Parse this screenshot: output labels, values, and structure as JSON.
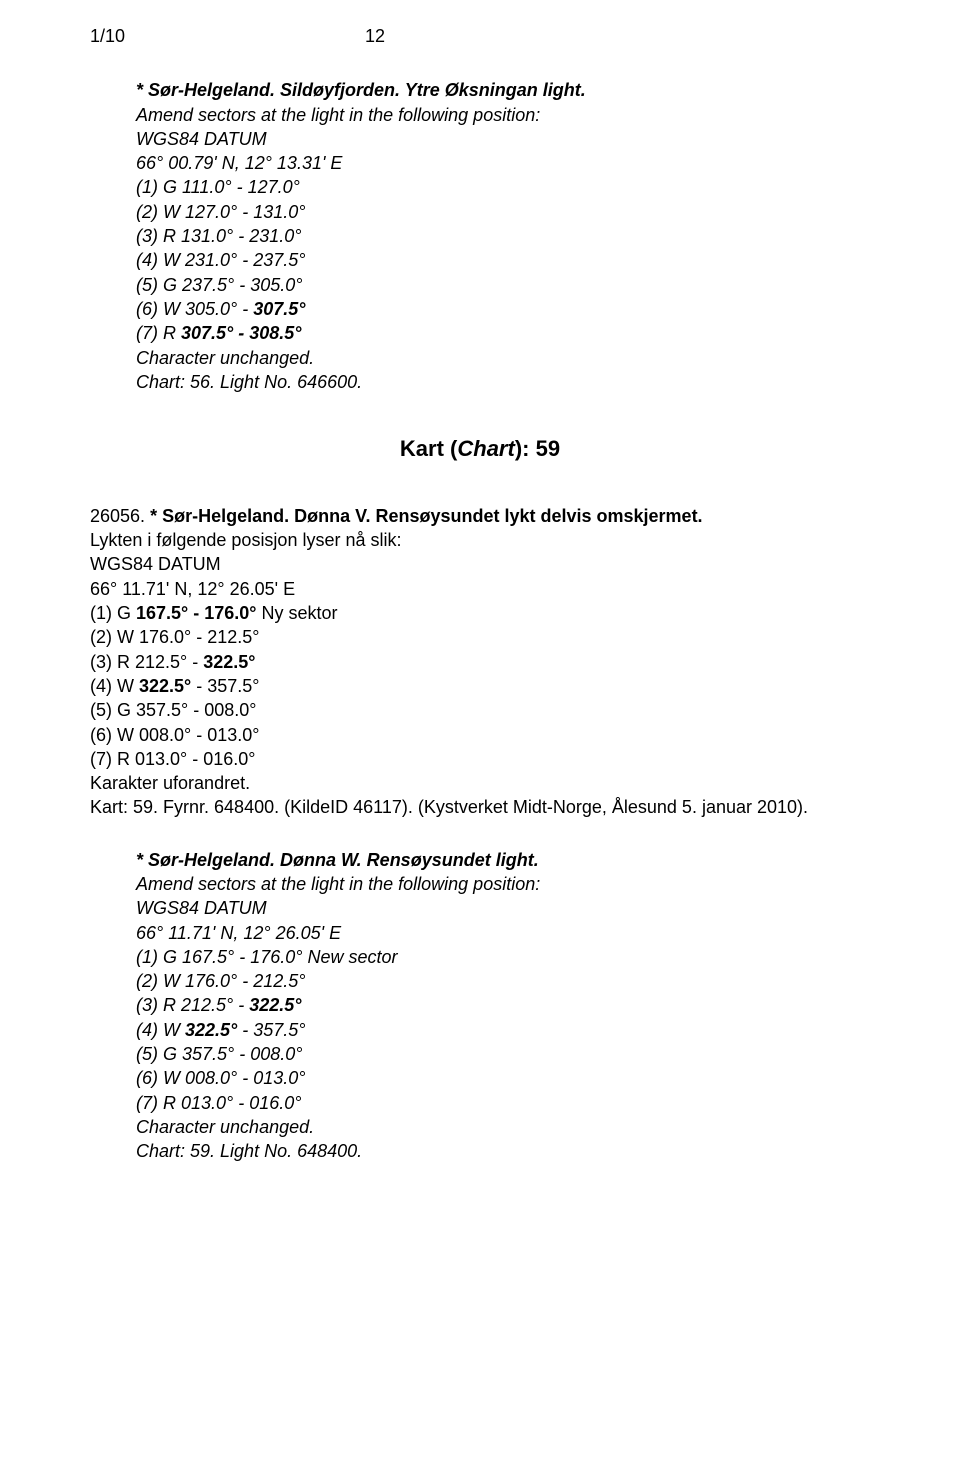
{
  "header": {
    "left": "1/10",
    "page": "12"
  },
  "s1": {
    "title_pre": "* Sør-Helgeland. Sildøyfjorden. Ytre Øksningan light.",
    "amend": "Amend sectors at the light in the following position:",
    "datum": "WGS84 DATUM",
    "coord": "66° 00.79' N, 12° 13.31' E",
    "l1": "(1) G  111.0° - 127.0°",
    "l2": "(2) W 127.0° - 131.0°",
    "l3": "(3) R  131.0° - 231.0°",
    "l4": "(4) W 231.0° - 237.5°",
    "l5": "(5) G  237.5° - 305.0°",
    "l6a": "(6) W 305.0° - ",
    "l6b": "307.5°",
    "l7a": "(7) R  ",
    "l7b": "307.5° - 308.5°",
    "unchanged": "Character unchanged.",
    "chartline": "Chart: 56. Light No. 646600."
  },
  "ch": {
    "pre": "Kart (",
    "mid": "Chart",
    "post": "): 59"
  },
  "s2": {
    "num": "26056. ",
    "title": "* Sør-Helgeland. Dønna V. Rensøysundet lykt delvis omskjermet.",
    "line2": "Lykten i følgende posisjon lyser nå slik:",
    "datum": "WGS84 DATUM",
    "coord": "66° 11.71' N, 12° 26.05' E",
    "l1a": "(1) G  ",
    "l1b": "167.5° - 176.0° ",
    "l1c": "Ny sektor",
    "l2": "(2) W 176.0° - 212.5°",
    "l3a": "(3) R  212.5° - ",
    "l3b": "322.5°",
    "l4a": "(4) W ",
    "l4b": "322.5° ",
    "l4c": "- 357.5°",
    "l5": "(5) G  357.5° - 008.0°",
    "l6": "(6) W 008.0° - 013.0°",
    "l7": "(7) R  013.0° - 016.0°",
    "kar": "Karakter uforandret.",
    "chartline": "Kart: 59. Fyrnr. 648400. (KildeID 46117). (Kystverket Midt-Norge, Ålesund 5. januar 2010)."
  },
  "s3": {
    "title": "* Sør-Helgeland. Dønna W. Rensøysundet light.",
    "amend": "Amend sectors at the light in the following position:",
    "datum": "WGS84 DATUM",
    "coord": "66° 11.71' N, 12° 26.05' E",
    "l1a": "(1) G  167.5° - 176.0° ",
    "l1b": "New sector",
    "l2": "(2) W 176.0° - 212.5°",
    "l3a": "(3) R  212.5° - ",
    "l3b": "322.5°",
    "l4a": "(4) W ",
    "l4b": "322.5°",
    "l4c": " - 357.5°",
    "l5": "(5) G  357.5° - 008.0°",
    "l6": "(6) W 008.0° - 013.0°",
    "l7": "(7) R  013.0° - 016.0°",
    "unchanged": "Character unchanged.",
    "chartline": "Chart: 59. Light No. 648400."
  }
}
